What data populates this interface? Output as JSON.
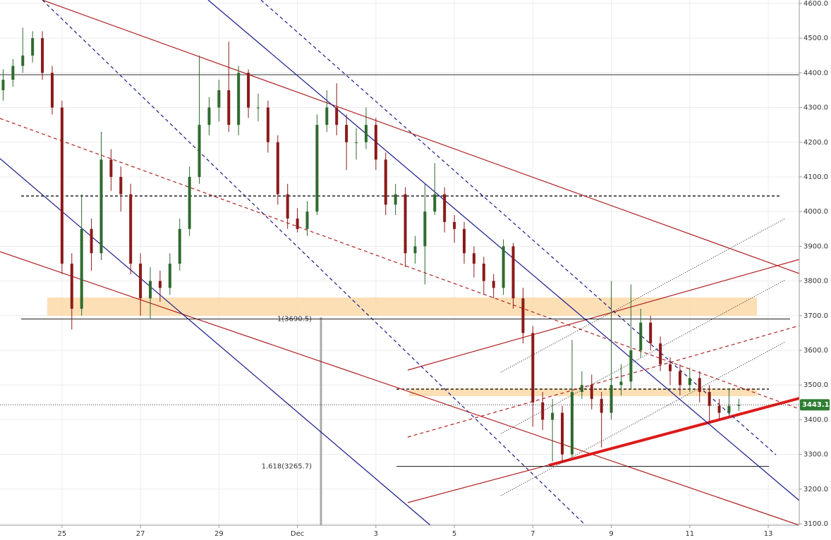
{
  "chart_data": {
    "type": "candlestick",
    "xlim": [
      23.42,
      43.79
    ],
    "ylim": [
      3096,
      4610
    ],
    "xticks": [
      {
        "value": 25,
        "label": "25"
      },
      {
        "value": 27,
        "label": "27"
      },
      {
        "value": 29,
        "label": "29"
      },
      {
        "value": 31,
        "label": "Dec"
      },
      {
        "value": 33,
        "label": "3"
      },
      {
        "value": 35,
        "label": "5"
      },
      {
        "value": 37,
        "label": "7"
      },
      {
        "value": 39,
        "label": "9"
      },
      {
        "value": 41,
        "label": "11"
      },
      {
        "value": 43,
        "label": "13"
      }
    ],
    "yticks": [
      {
        "value": 3100,
        "label": "3100.0"
      },
      {
        "value": 3200,
        "label": "3200.0"
      },
      {
        "value": 3300,
        "label": "3300.0"
      },
      {
        "value": 3400,
        "label": "3400.0"
      },
      {
        "value": 3500,
        "label": "3500.0"
      },
      {
        "value": 3600,
        "label": "3600.0"
      },
      {
        "value": 3700,
        "label": "3700.0"
      },
      {
        "value": 3800,
        "label": "3800.0"
      },
      {
        "value": 3900,
        "label": "3900.0"
      },
      {
        "value": 4000,
        "label": "4000.0"
      },
      {
        "value": 4100,
        "label": "4100.0"
      },
      {
        "value": 4200,
        "label": "4200.0"
      },
      {
        "value": 4300,
        "label": "4300.0"
      },
      {
        "value": 4400,
        "label": "4400.0"
      },
      {
        "value": 4500,
        "label": "4500.0"
      },
      {
        "value": 4600,
        "label": "4600.0"
      }
    ],
    "grid": true,
    "up_color": "#2f6b2f",
    "down_color": "#8b1a1a",
    "x": [
      23.5,
      23.75,
      24.0,
      24.25,
      24.5,
      24.75,
      25.0,
      25.25,
      25.5,
      25.75,
      26.0,
      26.25,
      26.5,
      26.75,
      27.0,
      27.25,
      27.5,
      27.75,
      28.0,
      28.25,
      28.5,
      28.75,
      29.0,
      29.25,
      29.5,
      29.75,
      30.0,
      30.25,
      30.5,
      30.75,
      31.0,
      31.25,
      31.5,
      31.75,
      32.0,
      32.25,
      32.5,
      32.75,
      33.0,
      33.25,
      33.5,
      33.75,
      34.0,
      34.25,
      34.5,
      34.75,
      35.0,
      35.25,
      35.5,
      35.75,
      36.0,
      36.25,
      36.5,
      36.75,
      37.0,
      37.25,
      37.5,
      37.75,
      38.0,
      38.25,
      38.5,
      38.75,
      39.0,
      39.25,
      39.5,
      39.75,
      40.0,
      40.25,
      40.5,
      40.75,
      41.0,
      41.25,
      41.5,
      41.75,
      42.0,
      42.25
    ],
    "open": [
      4350,
      4380,
      4420,
      4450,
      4500,
      4400,
      4300,
      3850,
      3720,
      3950,
      3880,
      4150,
      4100,
      4050,
      3850,
      3750,
      3800,
      3780,
      3850,
      3950,
      4100,
      4250,
      4300,
      4350,
      4250,
      4400,
      4300,
      4300,
      4200,
      4050,
      3980,
      3950,
      4000,
      4250,
      4300,
      4250,
      4200,
      4200,
      4250,
      4150,
      4020,
      4050,
      3880,
      3900,
      4000,
      4050,
      3970,
      3950,
      3880,
      3850,
      3800,
      3780,
      3900,
      3750,
      3650,
      3450,
      3400,
      3420,
      3300,
      3480,
      3500,
      3460,
      3420,
      3500,
      3510,
      3600,
      3680,
      3620,
      3560,
      3540,
      3500,
      3520,
      3480,
      3440,
      3420,
      3440
    ],
    "high": [
      4410,
      4440,
      4530,
      4520,
      4520,
      4420,
      4320,
      3880,
      4050,
      3980,
      4230,
      4180,
      4130,
      4080,
      3880,
      3840,
      3830,
      3880,
      3980,
      4130,
      4450,
      4330,
      4380,
      4490,
      4420,
      4410,
      4340,
      4320,
      4220,
      4080,
      4010,
      4030,
      4280,
      4350,
      4370,
      4280,
      4240,
      4300,
      4270,
      4170,
      4080,
      4070,
      3930,
      4080,
      4140,
      4070,
      3990,
      3970,
      3900,
      3870,
      3820,
      3920,
      3910,
      3780,
      3670,
      3480,
      3460,
      3440,
      3630,
      3540,
      3530,
      3480,
      3800,
      3560,
      3790,
      3720,
      3700,
      3640,
      3580,
      3560,
      3550,
      3540,
      3500,
      3460,
      3490,
      3460
    ],
    "low": [
      4320,
      4360,
      4400,
      4430,
      4380,
      4280,
      3820,
      3660,
      3700,
      3830,
      3860,
      4060,
      4000,
      3820,
      3700,
      3690,
      3740,
      3760,
      3830,
      3930,
      4080,
      4220,
      4260,
      4230,
      4220,
      4270,
      4260,
      4170,
      4020,
      3950,
      3940,
      3930,
      3990,
      4230,
      4220,
      4120,
      4150,
      4180,
      4120,
      3990,
      3990,
      3840,
      3850,
      3790,
      3990,
      3940,
      3910,
      3850,
      3810,
      3760,
      3750,
      3760,
      3720,
      3620,
      3380,
      3370,
      3280,
      3280,
      3290,
      3460,
      3430,
      3320,
      3400,
      3470,
      3490,
      3580,
      3600,
      3540,
      3500,
      3470,
      3480,
      3450,
      3390,
      3400,
      3410,
      3425
    ],
    "close": [
      4380,
      4420,
      4450,
      4500,
      4400,
      4300,
      3850,
      3720,
      3950,
      3880,
      4150,
      4100,
      4050,
      3850,
      3750,
      3800,
      3780,
      3850,
      3950,
      4100,
      4250,
      4300,
      4350,
      4250,
      4400,
      4300,
      4300,
      4200,
      4050,
      3980,
      3950,
      4000,
      4250,
      4300,
      4250,
      4200,
      4200,
      4250,
      4150,
      4020,
      4050,
      3880,
      3900,
      4000,
      4050,
      3970,
      3950,
      3880,
      3850,
      3800,
      3780,
      3900,
      3750,
      3650,
      3450,
      3400,
      3420,
      3300,
      3480,
      3500,
      3460,
      3420,
      3500,
      3510,
      3600,
      3680,
      3620,
      3560,
      3540,
      3500,
      3520,
      3480,
      3440,
      3420,
      3440,
      3443.1
    ],
    "fib_levels": [
      {
        "value": 3690.5,
        "label": "1(3690.5)"
      },
      {
        "value": 3265.7,
        "label": "1.618(3265.7)"
      }
    ],
    "last_price": 3443.1
  }
}
